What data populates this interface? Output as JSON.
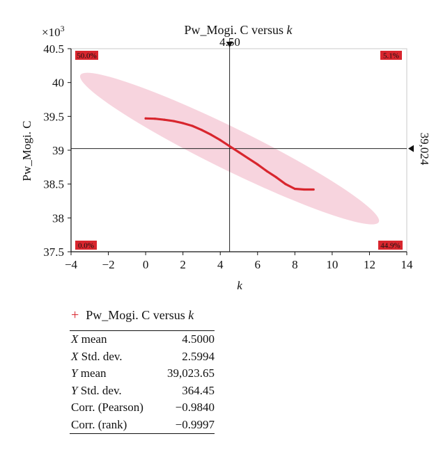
{
  "chart_data": {
    "type": "scatter",
    "title": "Pw_Mogi. C versus k",
    "xlabel": "k",
    "ylabel": "Pw_Mogi. C",
    "y_multiplier_label": "×10³",
    "xlim": [
      -4,
      14
    ],
    "ylim": [
      37.5,
      40.5
    ],
    "x_ticks": [
      -4,
      -2,
      0,
      2,
      4,
      6,
      8,
      10,
      12,
      14
    ],
    "x_tick_labels": [
      "−4",
      "−2",
      "0",
      "2",
      "4",
      "6",
      "8",
      "10",
      "12",
      "14"
    ],
    "y_ticks": [
      37.5,
      38,
      38.5,
      39,
      39.5,
      40,
      40.5
    ],
    "y_tick_labels": [
      "37.5",
      "38",
      "38.5",
      "39",
      "39.5",
      "40",
      "40.5"
    ],
    "crosshair": {
      "x": 4.5,
      "y": 39.024,
      "x_label": "4.50",
      "y_label": "39,024"
    },
    "quadrant_percents": {
      "top_left": "50.0%",
      "top_right": "5.1%",
      "bottom_left": "0.0%",
      "bottom_right": "44.9%"
    },
    "series": [
      {
        "name": "Pw_Mogi. C versus k",
        "color": "#d8262e",
        "x": [
          0.0,
          0.5,
          1.0,
          1.5,
          2.0,
          2.5,
          3.0,
          3.5,
          4.0,
          4.5,
          5.0,
          5.5,
          6.0,
          6.5,
          7.0,
          7.5,
          8.0,
          8.5,
          9.0
        ],
        "y": [
          39.47,
          39.465,
          39.45,
          39.43,
          39.4,
          39.36,
          39.3,
          39.23,
          39.15,
          39.06,
          38.97,
          38.88,
          38.79,
          38.69,
          38.6,
          38.5,
          38.43,
          38.42,
          38.42
        ]
      }
    ],
    "confidence_ellipse": {
      "color": "#f6cdd8",
      "center": [
        4.5,
        39.024
      ],
      "axis_endpoints": [
        [
          -3.5,
          40.11
        ],
        [
          12.5,
          37.94
        ]
      ]
    },
    "grid": false
  },
  "legend": {
    "marker": "+",
    "label": "Pw_Mogi. C versus k"
  },
  "stats_table": [
    {
      "label": "X mean",
      "value": "4.5000"
    },
    {
      "label": "X Std. dev.",
      "value": "2.5994"
    },
    {
      "label": "Y mean",
      "value": "39,023.65"
    },
    {
      "label": "Y Std. dev.",
      "value": "364.45"
    },
    {
      "label": "Corr. (Pearson)",
      "value": "−0.9840"
    },
    {
      "label": "Corr. (rank)",
      "value": "−0.9997"
    }
  ]
}
